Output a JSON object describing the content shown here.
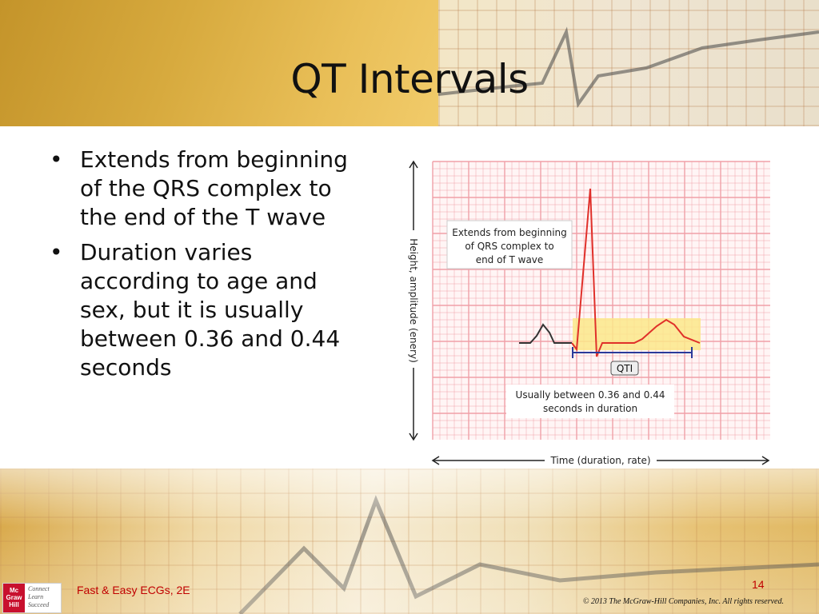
{
  "slide": {
    "title": "QT Intervals",
    "bullets": [
      "Extends from beginning of the QRS complex to the end of the T wave",
      "Duration varies according to age and sex, but it is usually between 0.36 and 0.44 seconds"
    ]
  },
  "figure": {
    "callout_top_lines": [
      "Extends from beginning",
      "of QRS complex to",
      "end of T wave"
    ],
    "interval_label": "QTI",
    "callout_bottom_lines": [
      "Usually between 0.36 and 0.44",
      "seconds in duration"
    ],
    "y_axis_label": "Height, amplitude (enery)",
    "x_axis_label": "Time (duration, rate)",
    "grid_color": "#f0a0a8",
    "trace_color": "#e0302a",
    "highlight_color": "#fbe88a",
    "interval_bar_color": "#2a3a9a"
  },
  "footer": {
    "book_title": "Fast & Easy ECGs, 2E",
    "page_number": "14",
    "copyright": "© 2013 The McGraw-Hill Companies, Inc. All rights reserved.",
    "logo_lines": [
      "Mc",
      "Graw",
      "Hill"
    ],
    "logo_tagline_lines": [
      "Connect",
      "Learn",
      "Succeed"
    ]
  }
}
